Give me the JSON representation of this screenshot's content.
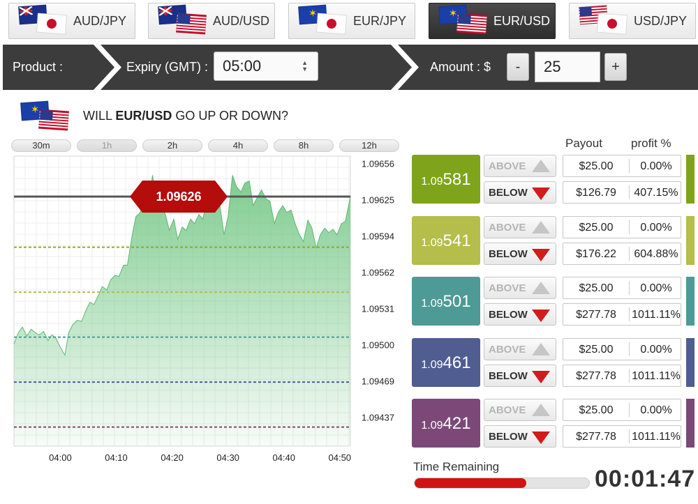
{
  "pairs": [
    {
      "label": "AUD/JPY",
      "flag_back": "flag-au",
      "flag_front": "flag-jp",
      "active": false
    },
    {
      "label": "AUD/USD",
      "flag_back": "flag-au",
      "flag_front": "flag-us",
      "active": false
    },
    {
      "label": "EUR/JPY",
      "flag_back": "flag-eu",
      "flag_front": "flag-jp",
      "active": false
    },
    {
      "label": "EUR/USD",
      "flag_back": "flag-eu",
      "flag_front": "flag-us",
      "active": true
    },
    {
      "label": "USD/JPY",
      "flag_back": "flag-us",
      "flag_front": "flag-jp",
      "active": false
    }
  ],
  "product_bar": {
    "product_label": "Product :",
    "expiry_label": "Expiry (GMT) :",
    "expiry_value": "05:00",
    "amount_label": "Amount : $",
    "minus_label": "-",
    "amount_value": "25",
    "plus_label": "+"
  },
  "question": {
    "prefix": "WILL ",
    "pair": "EUR/USD",
    "suffix": " GO UP OR DOWN?"
  },
  "timeframes": [
    {
      "label": "30m",
      "active": false
    },
    {
      "label": "1h",
      "active": true
    },
    {
      "label": "2h",
      "active": false
    },
    {
      "label": "4h",
      "active": false
    },
    {
      "label": "8h",
      "active": false
    },
    {
      "label": "12h",
      "active": false
    }
  ],
  "chart_data": {
    "type": "area",
    "x_unit": "minutes",
    "x_ticks": [
      {
        "value": 0,
        "label": "04:00"
      },
      {
        "value": 10,
        "label": "04:10"
      },
      {
        "value": 20,
        "label": "04:20"
      },
      {
        "value": 30,
        "label": "04:30"
      },
      {
        "value": 40,
        "label": "04:40"
      },
      {
        "value": 50,
        "label": "04:50"
      }
    ],
    "xlim": [
      -8.3,
      51.9
    ],
    "y_tick_labels": [
      "1.09656",
      "1.09625",
      "1.09594",
      "1.09562",
      "1.09531",
      "1.09500",
      "1.09469",
      "1.09437"
    ],
    "ylim": [
      1.09404,
      1.09662
    ],
    "current_price": 1.09626,
    "current_price_label": "1.09626",
    "strike_lines": [
      {
        "price": 1.09581,
        "color": "#8bab1f"
      },
      {
        "price": 1.09541,
        "color": "#b3bd45"
      },
      {
        "price": 1.09501,
        "color": "#4b9a94"
      },
      {
        "price": 1.09461,
        "color": "#4d5c93"
      },
      {
        "price": 1.09421,
        "color": "#7b4777"
      }
    ],
    "series": [
      {
        "x": [
          -8.3,
          -7.5,
          -6.8,
          -6,
          -5.2,
          -4.5,
          -3.8,
          -3,
          -2.2,
          -1.5,
          -0.8,
          0,
          0.8,
          1.5,
          2.2,
          3,
          3.8,
          4.5,
          5.3,
          6,
          6.8,
          7.5,
          8.3,
          9,
          9.8,
          10.5,
          11.3,
          12,
          12.8,
          13.5,
          14.3,
          15,
          15.8,
          16.5,
          17.3,
          18,
          18.8,
          19.5,
          20.3,
          21,
          21.8,
          22.5,
          23.3,
          24,
          24.8,
          25.5,
          26.3,
          27,
          27.8,
          28.5,
          29.3,
          30,
          30.8,
          31.5,
          32.3,
          33,
          33.8,
          34.5,
          35.3,
          36,
          36.8,
          37.5,
          38.3,
          39,
          39.8,
          40.5,
          41.3,
          42,
          42.8,
          43.5,
          44.3,
          45,
          45.8,
          46.5,
          47.3,
          48,
          48.8,
          49.5,
          50.3,
          51,
          51.9
        ],
        "y": [
          1.09495,
          1.09505,
          1.0951,
          1.09502,
          1.09508,
          1.09505,
          1.09503,
          1.09506,
          1.09498,
          1.09503,
          1.095,
          1.09492,
          1.09485,
          1.09505,
          1.09512,
          1.09516,
          1.09515,
          1.09524,
          1.09532,
          1.0953,
          1.09538,
          1.09546,
          1.09543,
          1.09552,
          1.09556,
          1.09555,
          1.09565,
          1.09565,
          1.0959,
          1.09608,
          1.09612,
          1.09628,
          1.09622,
          1.09645,
          1.09618,
          1.0962,
          1.0961,
          1.09596,
          1.09606,
          1.09588,
          1.09599,
          1.09596,
          1.09606,
          1.09602,
          1.0961,
          1.09606,
          1.09624,
          1.09622,
          1.09626,
          1.0962,
          1.09592,
          1.09608,
          1.09645,
          1.09635,
          1.0963,
          1.09638,
          1.0964,
          1.09618,
          1.09626,
          1.09632,
          1.09624,
          1.09622,
          1.09602,
          1.09612,
          1.09618,
          1.09612,
          1.09614,
          1.09602,
          1.09592,
          1.09586,
          1.09605,
          1.09598,
          1.0958,
          1.09592,
          1.09598,
          1.09594,
          1.09597,
          1.09592,
          1.09602,
          1.09604,
          1.09626
        ]
      }
    ]
  },
  "table": {
    "payout_header": "Payout",
    "profit_header": "profit %",
    "rows": [
      {
        "strike_small": "1.09",
        "strike_big": "581",
        "color": "#7fa41b",
        "above_label": "ABOVE",
        "below_label": "BELOW",
        "above_payout": "$25.00",
        "above_profit": "0.00%",
        "below_payout": "$126.79",
        "below_profit": "407.15%"
      },
      {
        "strike_small": "1.09",
        "strike_big": "541",
        "color": "#b5bd4b",
        "above_label": "ABOVE",
        "below_label": "BELOW",
        "above_payout": "$25.00",
        "above_profit": "0.00%",
        "below_payout": "$176.22",
        "below_profit": "604.88%"
      },
      {
        "strike_small": "1.09",
        "strike_big": "501",
        "color": "#4d9a96",
        "above_label": "ABOVE",
        "below_label": "BELOW",
        "above_payout": "$25.00",
        "above_profit": "0.00%",
        "below_payout": "$277.78",
        "below_profit": "1011.11%"
      },
      {
        "strike_small": "1.09",
        "strike_big": "461",
        "color": "#4f5d91",
        "above_label": "ABOVE",
        "below_label": "BELOW",
        "above_payout": "$25.00",
        "above_profit": "0.00%",
        "below_payout": "$277.78",
        "below_profit": "1011.11%"
      },
      {
        "strike_small": "1.09",
        "strike_big": "421",
        "color": "#7c4878",
        "above_label": "ABOVE",
        "below_label": "BELOW",
        "above_payout": "$25.00",
        "above_profit": "0.00%",
        "below_payout": "$277.78",
        "below_profit": "1011.11%"
      }
    ]
  },
  "time_remaining": {
    "label": "Time Remaining",
    "value": "00:01:47",
    "progress_fraction": 0.64
  },
  "colors": {
    "bar_dark": "#3c3c3c",
    "area_fill": "#79c98a",
    "price_tag": "#b50c0c",
    "baseline": "#555555",
    "countdown_bar": "#d01313"
  }
}
